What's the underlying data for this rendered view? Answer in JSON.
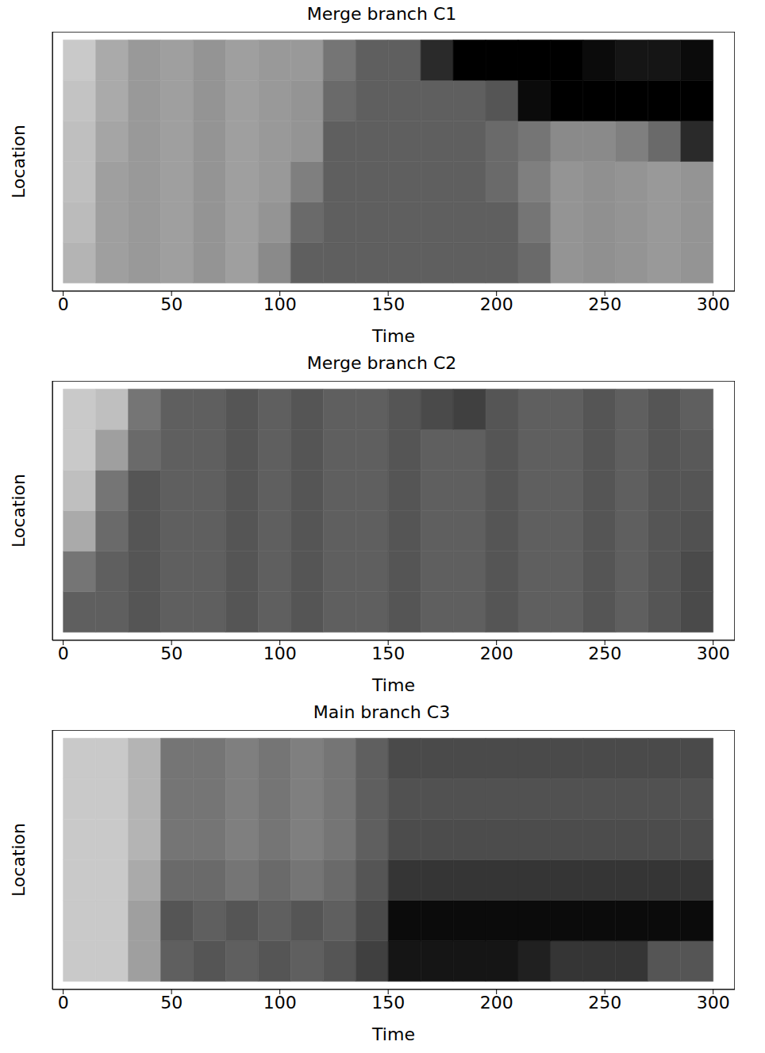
{
  "chart_data": [
    {
      "type": "heatmap",
      "title": "Merge branch C1",
      "x_label": "Time",
      "y_label": "Location",
      "xlim": [
        -5,
        310
      ],
      "xticks": [
        0,
        50,
        100,
        150,
        200,
        250,
        300
      ],
      "ylim": [
        -0.2,
        6.2
      ],
      "tick_labels": "x",
      "grid": false,
      "x_bins": [
        0,
        15,
        30,
        45,
        60,
        75,
        90,
        105,
        120,
        135,
        150,
        165,
        180,
        195,
        210,
        225,
        240,
        255,
        270,
        285,
        300
      ],
      "y_bins": [
        0,
        1,
        2,
        3,
        4,
        5,
        6
      ],
      "zlim": [
        0,
        1
      ],
      "cells": [
        [
          0.15,
          0.25,
          0.28,
          0.25,
          0.3,
          0.25,
          0.35,
          0.55,
          0.55,
          0.55,
          0.55,
          0.55,
          0.55,
          0.55,
          0.5,
          0.3,
          0.32,
          0.3,
          0.28,
          0.3
        ],
        [
          0.12,
          0.25,
          0.28,
          0.25,
          0.3,
          0.25,
          0.3,
          0.5,
          0.55,
          0.55,
          0.55,
          0.55,
          0.55,
          0.55,
          0.45,
          0.3,
          0.32,
          0.3,
          0.28,
          0.3
        ],
        [
          0.1,
          0.25,
          0.28,
          0.25,
          0.3,
          0.25,
          0.28,
          0.4,
          0.55,
          0.55,
          0.55,
          0.55,
          0.55,
          0.5,
          0.4,
          0.3,
          0.32,
          0.3,
          0.28,
          0.3
        ],
        [
          0.1,
          0.22,
          0.28,
          0.25,
          0.3,
          0.25,
          0.28,
          0.3,
          0.55,
          0.55,
          0.55,
          0.55,
          0.55,
          0.5,
          0.45,
          0.35,
          0.35,
          0.4,
          0.5,
          0.8
        ],
        [
          0.08,
          0.2,
          0.28,
          0.25,
          0.3,
          0.25,
          0.28,
          0.3,
          0.5,
          0.55,
          0.55,
          0.55,
          0.55,
          0.6,
          0.95,
          1,
          1,
          1,
          1,
          1
        ],
        [
          0.05,
          0.2,
          0.28,
          0.25,
          0.3,
          0.25,
          0.28,
          0.28,
          0.45,
          0.55,
          0.55,
          0.8,
          1,
          1,
          1,
          1,
          0.95,
          0.9,
          0.9,
          0.95
        ]
      ]
    },
    {
      "type": "heatmap",
      "title": "Merge branch C2",
      "x_label": "Time",
      "y_label": "Location",
      "xlim": [
        -5,
        310
      ],
      "xticks": [
        0,
        50,
        100,
        150,
        200,
        250,
        300
      ],
      "ylim": [
        -0.2,
        6.2
      ],
      "tick_labels": "x",
      "grid": false,
      "x_bins": [
        0,
        15,
        30,
        45,
        60,
        75,
        90,
        105,
        120,
        135,
        150,
        165,
        180,
        195,
        210,
        225,
        240,
        255,
        270,
        285,
        300
      ],
      "y_bins": [
        0,
        1,
        2,
        3,
        4,
        5,
        6
      ],
      "zlim": [
        0,
        1
      ],
      "cells": [
        [
          0.55,
          0.55,
          0.6,
          0.55,
          0.55,
          0.6,
          0.55,
          0.6,
          0.55,
          0.55,
          0.6,
          0.55,
          0.55,
          0.6,
          0.55,
          0.55,
          0.6,
          0.55,
          0.6,
          0.65
        ],
        [
          0.45,
          0.55,
          0.6,
          0.55,
          0.55,
          0.6,
          0.55,
          0.6,
          0.55,
          0.55,
          0.6,
          0.55,
          0.55,
          0.6,
          0.55,
          0.55,
          0.6,
          0.55,
          0.6,
          0.65
        ],
        [
          0.2,
          0.5,
          0.6,
          0.55,
          0.55,
          0.6,
          0.55,
          0.6,
          0.55,
          0.55,
          0.6,
          0.55,
          0.55,
          0.6,
          0.55,
          0.55,
          0.6,
          0.55,
          0.6,
          0.62
        ],
        [
          0.1,
          0.45,
          0.6,
          0.55,
          0.55,
          0.6,
          0.55,
          0.6,
          0.55,
          0.55,
          0.6,
          0.55,
          0.55,
          0.6,
          0.55,
          0.55,
          0.6,
          0.55,
          0.6,
          0.6
        ],
        [
          0.05,
          0.25,
          0.5,
          0.55,
          0.55,
          0.6,
          0.55,
          0.6,
          0.55,
          0.55,
          0.6,
          0.55,
          0.55,
          0.6,
          0.55,
          0.55,
          0.6,
          0.55,
          0.6,
          0.58
        ],
        [
          0.05,
          0.1,
          0.45,
          0.55,
          0.55,
          0.6,
          0.55,
          0.6,
          0.55,
          0.55,
          0.6,
          0.65,
          0.7,
          0.6,
          0.55,
          0.55,
          0.6,
          0.55,
          0.6,
          0.55
        ]
      ]
    },
    {
      "type": "heatmap",
      "title": "Main branch C3",
      "x_label": "Time",
      "y_label": "Location",
      "xlim": [
        -5,
        310
      ],
      "xticks": [
        0,
        50,
        100,
        150,
        200,
        250,
        300
      ],
      "ylim": [
        -0.2,
        6.2
      ],
      "tick_labels": "x",
      "grid": false,
      "x_bins": [
        0,
        15,
        30,
        45,
        60,
        75,
        90,
        105,
        120,
        135,
        150,
        165,
        180,
        195,
        210,
        225,
        240,
        255,
        270,
        285,
        300
      ],
      "y_bins": [
        0,
        1,
        2,
        3,
        4,
        5,
        6
      ],
      "zlim": [
        0,
        1
      ],
      "cells": [
        [
          0.05,
          0.05,
          0.25,
          0.55,
          0.6,
          0.55,
          0.6,
          0.55,
          0.6,
          0.7,
          0.9,
          0.9,
          0.9,
          0.9,
          0.85,
          0.75,
          0.75,
          0.75,
          0.6,
          0.6
        ],
        [
          0.05,
          0.05,
          0.25,
          0.6,
          0.55,
          0.6,
          0.55,
          0.6,
          0.55,
          0.65,
          0.95,
          0.95,
          0.95,
          0.95,
          0.95,
          0.95,
          0.95,
          0.95,
          0.95,
          0.95
        ],
        [
          0.05,
          0.05,
          0.2,
          0.5,
          0.5,
          0.45,
          0.5,
          0.45,
          0.5,
          0.6,
          0.75,
          0.75,
          0.75,
          0.75,
          0.75,
          0.75,
          0.75,
          0.75,
          0.75,
          0.75
        ],
        [
          0.05,
          0.05,
          0.15,
          0.45,
          0.45,
          0.4,
          0.45,
          0.4,
          0.45,
          0.55,
          0.64,
          0.64,
          0.64,
          0.64,
          0.64,
          0.64,
          0.64,
          0.64,
          0.64,
          0.64
        ],
        [
          0.05,
          0.05,
          0.15,
          0.45,
          0.45,
          0.4,
          0.45,
          0.4,
          0.45,
          0.55,
          0.62,
          0.62,
          0.62,
          0.62,
          0.62,
          0.62,
          0.62,
          0.62,
          0.62,
          0.62
        ],
        [
          0.05,
          0.05,
          0.15,
          0.45,
          0.45,
          0.4,
          0.45,
          0.4,
          0.45,
          0.55,
          0.65,
          0.65,
          0.65,
          0.65,
          0.65,
          0.65,
          0.65,
          0.65,
          0.65,
          0.65
        ]
      ]
    }
  ]
}
